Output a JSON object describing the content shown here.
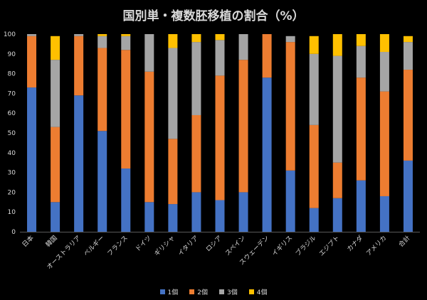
{
  "chart_data": {
    "type": "bar",
    "stacked": true,
    "percent": true,
    "title": "国別単・複数胚移植の割合（%）",
    "xlabel": "",
    "ylabel": "",
    "ylim": [
      0,
      100
    ],
    "yticks": [
      0,
      10,
      20,
      30,
      40,
      50,
      60,
      70,
      80,
      90,
      100
    ],
    "grid": false,
    "legend": "bottom",
    "categories": [
      "日本",
      "韓国",
      "オーストラリア",
      "ベルギー",
      "フランス",
      "ドイツ",
      "ギリシャ",
      "イタリア",
      "ロシア",
      "スペイン",
      "スウェーデン",
      "イギリス",
      "ブラジル",
      "エジプト",
      "カナダ",
      "アメリカ",
      "合計"
    ],
    "series": [
      {
        "name": "1個",
        "color": "#4472c4",
        "values": [
          73,
          15,
          69,
          51,
          32,
          15,
          14,
          20,
          16,
          20,
          78,
          31,
          12,
          17,
          26,
          18,
          36
        ]
      },
      {
        "name": "2個",
        "color": "#ed7d31",
        "values": [
          26,
          38,
          30,
          42,
          60,
          66,
          33,
          39,
          63,
          67,
          22,
          65,
          42,
          18,
          52,
          53,
          46
        ]
      },
      {
        "name": "3個",
        "color": "#a5a5a5",
        "values": [
          1,
          34,
          1,
          6,
          7,
          19,
          46,
          37,
          18,
          13,
          0,
          3,
          36,
          54,
          16,
          20,
          14
        ]
      },
      {
        "name": "4個",
        "color": "#ffc000",
        "values": [
          0,
          12,
          0,
          1,
          1,
          0,
          7,
          4,
          3,
          0,
          0,
          0,
          9,
          11,
          6,
          9,
          3
        ]
      }
    ]
  }
}
